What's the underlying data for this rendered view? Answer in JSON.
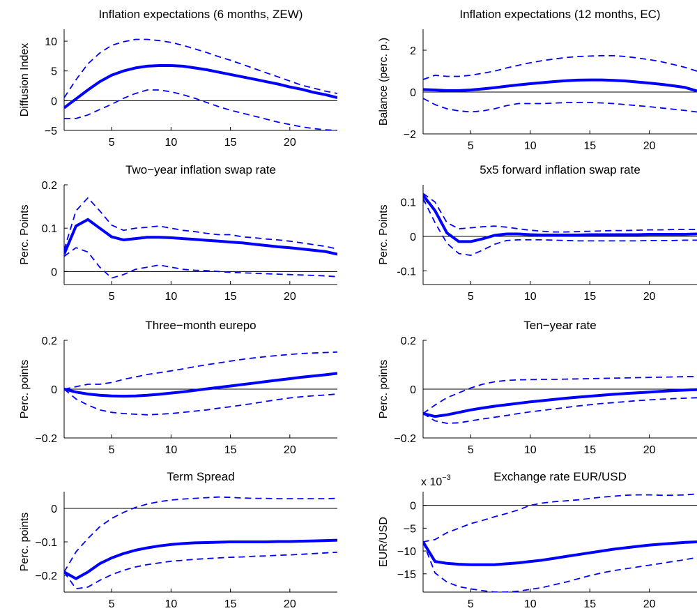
{
  "figure": {
    "line_color": "#0000ff",
    "zero_line_color": "#000000"
  },
  "chart_data": [
    {
      "type": "line",
      "title": "Inflation expectations (6 months, ZEW)",
      "ylabel": "Diffusion Index",
      "xlim": [
        1,
        24
      ],
      "ylim": [
        -5,
        12
      ],
      "xticks": [
        5,
        10,
        15,
        20
      ],
      "yticks": [
        -5,
        0,
        5,
        10
      ],
      "ytick_labels": [
        "−5",
        "0",
        "5",
        "10"
      ],
      "exponent_label": "",
      "x": [
        1,
        2,
        3,
        4,
        5,
        6,
        7,
        8,
        9,
        10,
        11,
        12,
        13,
        14,
        15,
        16,
        17,
        18,
        19,
        20,
        21,
        22,
        23,
        24
      ],
      "series": [
        {
          "style": "solid",
          "values": [
            -1.2,
            0.3,
            1.8,
            3.2,
            4.3,
            5.0,
            5.5,
            5.8,
            5.9,
            5.9,
            5.8,
            5.5,
            5.2,
            4.8,
            4.4,
            4.0,
            3.6,
            3.2,
            2.8,
            2.3,
            1.9,
            1.4,
            1.0,
            0.5
          ]
        },
        {
          "style": "dashed",
          "values": [
            0.5,
            3.5,
            6.2,
            8.0,
            9.3,
            9.9,
            10.3,
            10.3,
            10.1,
            9.8,
            9.3,
            8.7,
            8.1,
            7.4,
            6.8,
            6.1,
            5.4,
            4.7,
            4.0,
            3.3,
            2.6,
            2.1,
            1.6,
            1.2
          ]
        },
        {
          "style": "dashed",
          "values": [
            -3.0,
            -3.0,
            -2.4,
            -1.5,
            -0.6,
            0.4,
            1.2,
            1.8,
            1.8,
            1.5,
            1.0,
            0.4,
            -0.3,
            -1.0,
            -1.6,
            -2.1,
            -2.6,
            -3.1,
            -3.6,
            -4.0,
            -4.4,
            -4.7,
            -4.9,
            -5.0
          ]
        }
      ]
    },
    {
      "type": "line",
      "title": "Inflation expectations (12 months, EC)",
      "ylabel": "Balance (perc. p.)",
      "xlim": [
        1,
        24
      ],
      "ylim": [
        -2,
        3
      ],
      "xticks": [
        5,
        10,
        15,
        20
      ],
      "yticks": [
        -2,
        0,
        2
      ],
      "ytick_labels": [
        "−2",
        "0",
        "2"
      ],
      "exponent_label": "",
      "x": [
        1,
        2,
        3,
        4,
        5,
        6,
        7,
        8,
        9,
        10,
        11,
        12,
        13,
        14,
        15,
        16,
        17,
        18,
        19,
        20,
        21,
        22,
        23,
        24
      ],
      "series": [
        {
          "style": "solid",
          "values": [
            0.12,
            0.1,
            0.07,
            0.07,
            0.1,
            0.15,
            0.21,
            0.28,
            0.34,
            0.4,
            0.45,
            0.5,
            0.54,
            0.57,
            0.58,
            0.58,
            0.56,
            0.53,
            0.48,
            0.43,
            0.37,
            0.3,
            0.22,
            0.05
          ]
        },
        {
          "style": "dashed",
          "values": [
            0.6,
            0.8,
            0.75,
            0.75,
            0.8,
            0.9,
            1.0,
            1.15,
            1.28,
            1.4,
            1.5,
            1.58,
            1.65,
            1.7,
            1.72,
            1.74,
            1.74,
            1.7,
            1.63,
            1.55,
            1.45,
            1.32,
            1.18,
            1.0
          ]
        },
        {
          "style": "dashed",
          "values": [
            -0.3,
            -0.6,
            -0.8,
            -0.9,
            -0.95,
            -0.9,
            -0.8,
            -0.65,
            -0.55,
            -0.55,
            -0.55,
            -0.53,
            -0.5,
            -0.5,
            -0.5,
            -0.52,
            -0.55,
            -0.6,
            -0.65,
            -0.7,
            -0.76,
            -0.82,
            -0.88,
            -0.95
          ]
        }
      ]
    },
    {
      "type": "line",
      "title": "Two−year inflation swap rate",
      "ylabel": "Perc. Points",
      "xlim": [
        1,
        24
      ],
      "ylim": [
        -0.03,
        0.2
      ],
      "xticks": [
        5,
        10,
        15,
        20
      ],
      "yticks": [
        0,
        0.1,
        0.2
      ],
      "ytick_labels": [
        "0",
        "0.1",
        "0.2"
      ],
      "exponent_label": "",
      "x": [
        1,
        2,
        3,
        4,
        5,
        6,
        7,
        8,
        9,
        10,
        11,
        12,
        13,
        14,
        15,
        16,
        17,
        18,
        19,
        20,
        21,
        22,
        23,
        24
      ],
      "series": [
        {
          "style": "solid",
          "values": [
            0.04,
            0.105,
            0.12,
            0.1,
            0.08,
            0.073,
            0.076,
            0.079,
            0.079,
            0.078,
            0.076,
            0.074,
            0.072,
            0.07,
            0.068,
            0.066,
            0.063,
            0.06,
            0.057,
            0.055,
            0.052,
            0.049,
            0.046,
            0.04
          ]
        },
        {
          "style": "dashed",
          "values": [
            0.05,
            0.14,
            0.17,
            0.14,
            0.107,
            0.095,
            0.1,
            0.102,
            0.105,
            0.1,
            0.095,
            0.092,
            0.088,
            0.085,
            0.085,
            0.08,
            0.078,
            0.075,
            0.073,
            0.07,
            0.066,
            0.062,
            0.058,
            0.052
          ]
        },
        {
          "style": "dashed",
          "values": [
            0.035,
            0.055,
            0.045,
            0.01,
            -0.015,
            -0.007,
            0.005,
            0.01,
            0.015,
            0.01,
            0.005,
            0.003,
            0.002,
            0.0,
            -0.002,
            -0.003,
            -0.004,
            -0.005,
            -0.006,
            -0.007,
            -0.008,
            -0.009,
            -0.01,
            -0.012
          ]
        }
      ]
    },
    {
      "type": "line",
      "title": "5x5 forward inflation swap rate",
      "ylabel": "Perc. Points",
      "xlim": [
        1,
        24
      ],
      "ylim": [
        -0.14,
        0.15
      ],
      "xticks": [
        5,
        10,
        15,
        20
      ],
      "yticks": [
        -0.1,
        0,
        0.1
      ],
      "ytick_labels": [
        "-0.1",
        "0",
        "0.1"
      ],
      "exponent_label": "",
      "x": [
        1,
        2,
        3,
        4,
        5,
        6,
        7,
        8,
        9,
        10,
        11,
        12,
        13,
        14,
        15,
        16,
        17,
        18,
        19,
        20,
        21,
        22,
        23,
        24
      ],
      "series": [
        {
          "style": "solid",
          "values": [
            0.12,
            0.075,
            0.01,
            -0.015,
            -0.015,
            -0.007,
            0.003,
            0.007,
            0.007,
            0.005,
            0.004,
            0.004,
            0.004,
            0.004,
            0.005,
            0.005,
            0.005,
            0.005,
            0.005,
            0.006,
            0.006,
            0.006,
            0.006,
            0.007
          ]
        },
        {
          "style": "dashed",
          "values": [
            0.125,
            0.1,
            0.04,
            0.022,
            0.025,
            0.028,
            0.03,
            0.027,
            0.022,
            0.018,
            0.015,
            0.013,
            0.013,
            0.014,
            0.015,
            0.016,
            0.017,
            0.017,
            0.018,
            0.019,
            0.019,
            0.02,
            0.02,
            0.02
          ]
        },
        {
          "style": "dashed",
          "values": [
            0.11,
            0.04,
            -0.02,
            -0.05,
            -0.055,
            -0.04,
            -0.023,
            -0.012,
            -0.01,
            -0.01,
            -0.01,
            -0.011,
            -0.012,
            -0.013,
            -0.013,
            -0.013,
            -0.013,
            -0.013,
            -0.013,
            -0.012,
            -0.012,
            -0.012,
            -0.011,
            -0.011
          ]
        }
      ]
    },
    {
      "type": "line",
      "title": "Three−month eurepo",
      "ylabel": "Perc. points",
      "xlim": [
        1,
        24
      ],
      "ylim": [
        -0.2,
        0.2
      ],
      "xticks": [
        5,
        10,
        15,
        20
      ],
      "yticks": [
        -0.2,
        0,
        0.2
      ],
      "ytick_labels": [
        "−0.2",
        "0",
        "0.2"
      ],
      "exponent_label": "",
      "x": [
        1,
        2,
        3,
        4,
        5,
        6,
        7,
        8,
        9,
        10,
        11,
        12,
        13,
        14,
        15,
        16,
        17,
        18,
        19,
        20,
        21,
        22,
        23,
        24
      ],
      "series": [
        {
          "style": "solid",
          "values": [
            0.0,
            -0.012,
            -0.02,
            -0.025,
            -0.028,
            -0.029,
            -0.028,
            -0.025,
            -0.021,
            -0.016,
            -0.011,
            -0.005,
            0.001,
            0.007,
            0.013,
            0.019,
            0.025,
            0.031,
            0.037,
            0.043,
            0.049,
            0.054,
            0.059,
            0.065
          ]
        },
        {
          "style": "dashed",
          "values": [
            0.0,
            0.01,
            0.02,
            0.02,
            0.027,
            0.04,
            0.05,
            0.06,
            0.067,
            0.075,
            0.083,
            0.092,
            0.1,
            0.107,
            0.115,
            0.122,
            0.128,
            0.133,
            0.138,
            0.142,
            0.146,
            0.148,
            0.15,
            0.152
          ]
        },
        {
          "style": "dashed",
          "values": [
            0.0,
            -0.04,
            -0.065,
            -0.085,
            -0.095,
            -0.1,
            -0.103,
            -0.105,
            -0.103,
            -0.1,
            -0.095,
            -0.09,
            -0.085,
            -0.078,
            -0.072,
            -0.065,
            -0.058,
            -0.05,
            -0.043,
            -0.036,
            -0.031,
            -0.027,
            -0.024,
            -0.02
          ]
        }
      ]
    },
    {
      "type": "line",
      "title": "Ten−year rate",
      "ylabel": "Perc. points",
      "xlim": [
        1,
        24
      ],
      "ylim": [
        -0.2,
        0.2
      ],
      "xticks": [
        5,
        10,
        15,
        20
      ],
      "yticks": [
        -0.2,
        0,
        0.2
      ],
      "ytick_labels": [
        "−0.2",
        "0",
        "0.2"
      ],
      "exponent_label": "",
      "x": [
        1,
        2,
        3,
        4,
        5,
        6,
        7,
        8,
        9,
        10,
        11,
        12,
        13,
        14,
        15,
        16,
        17,
        18,
        19,
        20,
        21,
        22,
        23,
        24
      ],
      "series": [
        {
          "style": "solid",
          "values": [
            -0.1,
            -0.112,
            -0.105,
            -0.095,
            -0.085,
            -0.077,
            -0.07,
            -0.064,
            -0.058,
            -0.052,
            -0.047,
            -0.042,
            -0.037,
            -0.033,
            -0.029,
            -0.025,
            -0.021,
            -0.018,
            -0.015,
            -0.012,
            -0.009,
            -0.006,
            -0.004,
            -0.002
          ]
        },
        {
          "style": "dashed",
          "values": [
            -0.1,
            -0.065,
            -0.035,
            -0.015,
            0.005,
            0.02,
            0.03,
            0.036,
            0.038,
            0.039,
            0.04,
            0.04,
            0.041,
            0.042,
            0.043,
            0.044,
            0.045,
            0.046,
            0.047,
            0.048,
            0.049,
            0.05,
            0.051,
            0.052
          ]
        },
        {
          "style": "dashed",
          "values": [
            -0.1,
            -0.13,
            -0.14,
            -0.138,
            -0.13,
            -0.122,
            -0.115,
            -0.108,
            -0.1,
            -0.093,
            -0.087,
            -0.081,
            -0.075,
            -0.069,
            -0.064,
            -0.059,
            -0.055,
            -0.051,
            -0.047,
            -0.044,
            -0.041,
            -0.039,
            -0.037,
            -0.035
          ]
        }
      ]
    },
    {
      "type": "line",
      "title": "Term Spread",
      "ylabel": "Perc. points",
      "xlim": [
        1,
        24
      ],
      "ylim": [
        -0.25,
        0.05
      ],
      "xticks": [
        5,
        10,
        15,
        20
      ],
      "yticks": [
        -0.2,
        -0.1,
        0
      ],
      "ytick_labels": [
        "−0.2",
        "−0.1",
        "0"
      ],
      "exponent_label": "",
      "x": [
        1,
        2,
        3,
        4,
        5,
        6,
        7,
        8,
        9,
        10,
        11,
        12,
        13,
        14,
        15,
        16,
        17,
        18,
        19,
        20,
        21,
        22,
        23,
        24
      ],
      "series": [
        {
          "style": "solid",
          "values": [
            -0.19,
            -0.21,
            -0.19,
            -0.165,
            -0.148,
            -0.135,
            -0.125,
            -0.118,
            -0.112,
            -0.108,
            -0.105,
            -0.103,
            -0.102,
            -0.101,
            -0.1,
            -0.1,
            -0.1,
            -0.1,
            -0.099,
            -0.099,
            -0.098,
            -0.097,
            -0.096,
            -0.095
          ]
        },
        {
          "style": "dashed",
          "values": [
            -0.19,
            -0.13,
            -0.09,
            -0.055,
            -0.03,
            -0.012,
            0.003,
            0.013,
            0.02,
            0.025,
            0.028,
            0.03,
            0.032,
            0.034,
            0.033,
            0.031,
            0.03,
            0.03,
            0.029,
            0.029,
            0.029,
            0.029,
            0.029,
            0.03
          ]
        },
        {
          "style": "dashed",
          "values": [
            -0.19,
            -0.24,
            -0.235,
            -0.215,
            -0.198,
            -0.185,
            -0.175,
            -0.168,
            -0.163,
            -0.158,
            -0.155,
            -0.152,
            -0.15,
            -0.148,
            -0.146,
            -0.145,
            -0.143,
            -0.142,
            -0.14,
            -0.139,
            -0.137,
            -0.135,
            -0.133,
            -0.131
          ]
        }
      ]
    },
    {
      "type": "line",
      "title": "Exchange rate EUR/USD",
      "ylabel": "EUR/USD",
      "xlim": [
        1,
        24
      ],
      "ylim": [
        -19,
        3
      ],
      "xticks": [
        5,
        10,
        15,
        20
      ],
      "yticks": [
        -15,
        -10,
        -5,
        0
      ],
      "ytick_labels": [
        "−15",
        "−10",
        "−5",
        "0"
      ],
      "exponent_label": "x 10",
      "exponent_power": "−3",
      "x": [
        1,
        2,
        3,
        4,
        5,
        6,
        7,
        8,
        9,
        10,
        11,
        12,
        13,
        14,
        15,
        16,
        17,
        18,
        19,
        20,
        21,
        22,
        23,
        24
      ],
      "series": [
        {
          "style": "solid",
          "values": [
            -8.0,
            -12.3,
            -12.7,
            -12.9,
            -13.0,
            -13.0,
            -13.0,
            -12.8,
            -12.6,
            -12.3,
            -12.0,
            -11.6,
            -11.2,
            -10.8,
            -10.4,
            -10.0,
            -9.6,
            -9.3,
            -9.0,
            -8.7,
            -8.5,
            -8.3,
            -8.1,
            -8.0
          ]
        },
        {
          "style": "dashed",
          "values": [
            -8.0,
            -7.5,
            -6.0,
            -5.0,
            -4.0,
            -3.3,
            -2.5,
            -1.8,
            -1.0,
            0.0,
            0.5,
            0.8,
            1.0,
            1.2,
            1.5,
            1.8,
            2.0,
            2.2,
            2.3,
            2.3,
            2.2,
            2.2,
            2.3,
            2.5
          ]
        },
        {
          "style": "dashed",
          "values": [
            -8.0,
            -14.8,
            -16.8,
            -17.8,
            -18.3,
            -18.7,
            -19.0,
            -19.0,
            -18.8,
            -18.4,
            -18.0,
            -17.4,
            -16.8,
            -16.1,
            -15.4,
            -14.8,
            -14.3,
            -13.9,
            -13.5,
            -13.1,
            -12.7,
            -12.3,
            -11.9,
            -11.4
          ]
        }
      ]
    }
  ]
}
